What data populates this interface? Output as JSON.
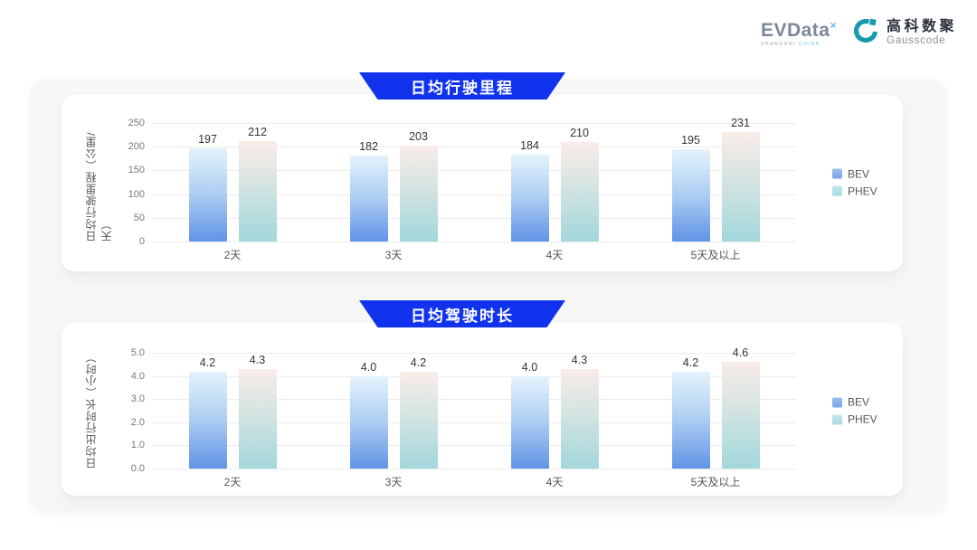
{
  "header": {
    "evdata": {
      "name": "EVData",
      "sup": "×",
      "tagline_left": "SHANGHAI",
      "tagline_right": "CHINA"
    },
    "gausscode": {
      "cn": "高科数聚",
      "en": "Gausscode"
    }
  },
  "colors": {
    "banner_blue": "#1133ee",
    "bev_gradient_top": "#e4f3fc",
    "bev_gradient_bottom": "#6194e6",
    "phev_gradient_top": "#f9ece8",
    "phev_gradient_bottom": "#a2d7db",
    "legend_bev": "#85b0ea",
    "legend_phev": "#a9dce8",
    "panel_bg": "#f7f7f8",
    "card_bg": "#ffffff",
    "gausscode_teal": "#1899ac"
  },
  "chart_data": [
    {
      "type": "bar",
      "title": "日均行驶里程",
      "ylabel": "日均行驶里程（公里/天）",
      "xlabel": "",
      "ylim": [
        0,
        250
      ],
      "ytick_step": 50,
      "yticks": [
        "250",
        "200",
        "150",
        "100",
        "50",
        "0"
      ],
      "categories": [
        "2天",
        "3天",
        "4天",
        "5天及以上"
      ],
      "series": [
        {
          "name": "BEV",
          "values": [
            197,
            182,
            184,
            195
          ],
          "labels": [
            "197",
            "182",
            "184",
            "195"
          ]
        },
        {
          "name": "PHEV",
          "values": [
            212,
            203,
            210,
            231
          ],
          "labels": [
            "212",
            "203",
            "210",
            "231"
          ]
        }
      ],
      "legend_position": "right",
      "grid": true
    },
    {
      "type": "bar",
      "title": "日均驾驶时长",
      "ylabel": "日均出行时长（小时）",
      "xlabel": "",
      "ylim": [
        0,
        5.0
      ],
      "ytick_step": 1.0,
      "yticks": [
        "5.0",
        "4.0",
        "3.0",
        "2.0",
        "1.0",
        "0.0"
      ],
      "categories": [
        "2天",
        "3天",
        "4天",
        "5天及以上"
      ],
      "series": [
        {
          "name": "BEV",
          "values": [
            4.2,
            4.0,
            4.0,
            4.2
          ],
          "labels": [
            "4.2",
            "4.0",
            "4.0",
            "4.2"
          ]
        },
        {
          "name": "PHEV",
          "values": [
            4.3,
            4.2,
            4.3,
            4.6
          ],
          "labels": [
            "4.3",
            "4.2",
            "4.3",
            "4.6"
          ]
        }
      ],
      "legend_position": "right",
      "grid": true
    }
  ]
}
